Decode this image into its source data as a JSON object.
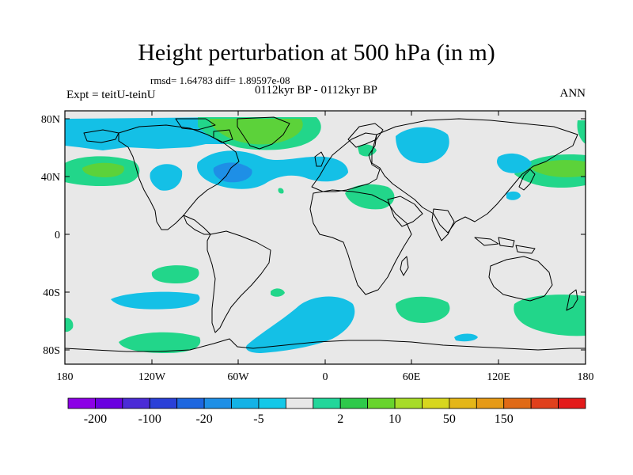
{
  "header": {
    "title": "Height perturbation at 500 hPa (in m)",
    "stats": "rmsd= 1.64783 diff= 1.89597e-08",
    "period": "0112kyr BP - 0112kyr BP",
    "expt": "Expt = teitU-teinU",
    "season": "ANN"
  },
  "axes": {
    "y_ticks": [
      "80N",
      "40N",
      "0",
      "40S",
      "80S"
    ],
    "x_ticks": [
      "180",
      "120W",
      "60W",
      "0",
      "60E",
      "120E",
      "180"
    ]
  },
  "colorbar": {
    "colors": [
      "#8c00e6",
      "#6a00e0",
      "#4b2bd6",
      "#2a40d8",
      "#1d67e0",
      "#1e8fe6",
      "#13b2e6",
      "#14c8e8",
      "#e8e8e8",
      "#22d69a",
      "#2ec94a",
      "#68d42c",
      "#a7dc28",
      "#d7d61e",
      "#e4b618",
      "#e69a16",
      "#e06a16",
      "#e0401c",
      "#e31a1a"
    ],
    "labels": [
      "-200",
      "-100",
      "-20",
      "-5",
      "2",
      "10",
      "50",
      "150"
    ]
  },
  "colors": {
    "ocean_background": "#e8e8e8",
    "negative_fill": "#14c0e6",
    "negative_strong_fill": "#1e8fe6",
    "positive_fill": "#22d68a",
    "positive_strong_fill": "#5cd23a"
  }
}
